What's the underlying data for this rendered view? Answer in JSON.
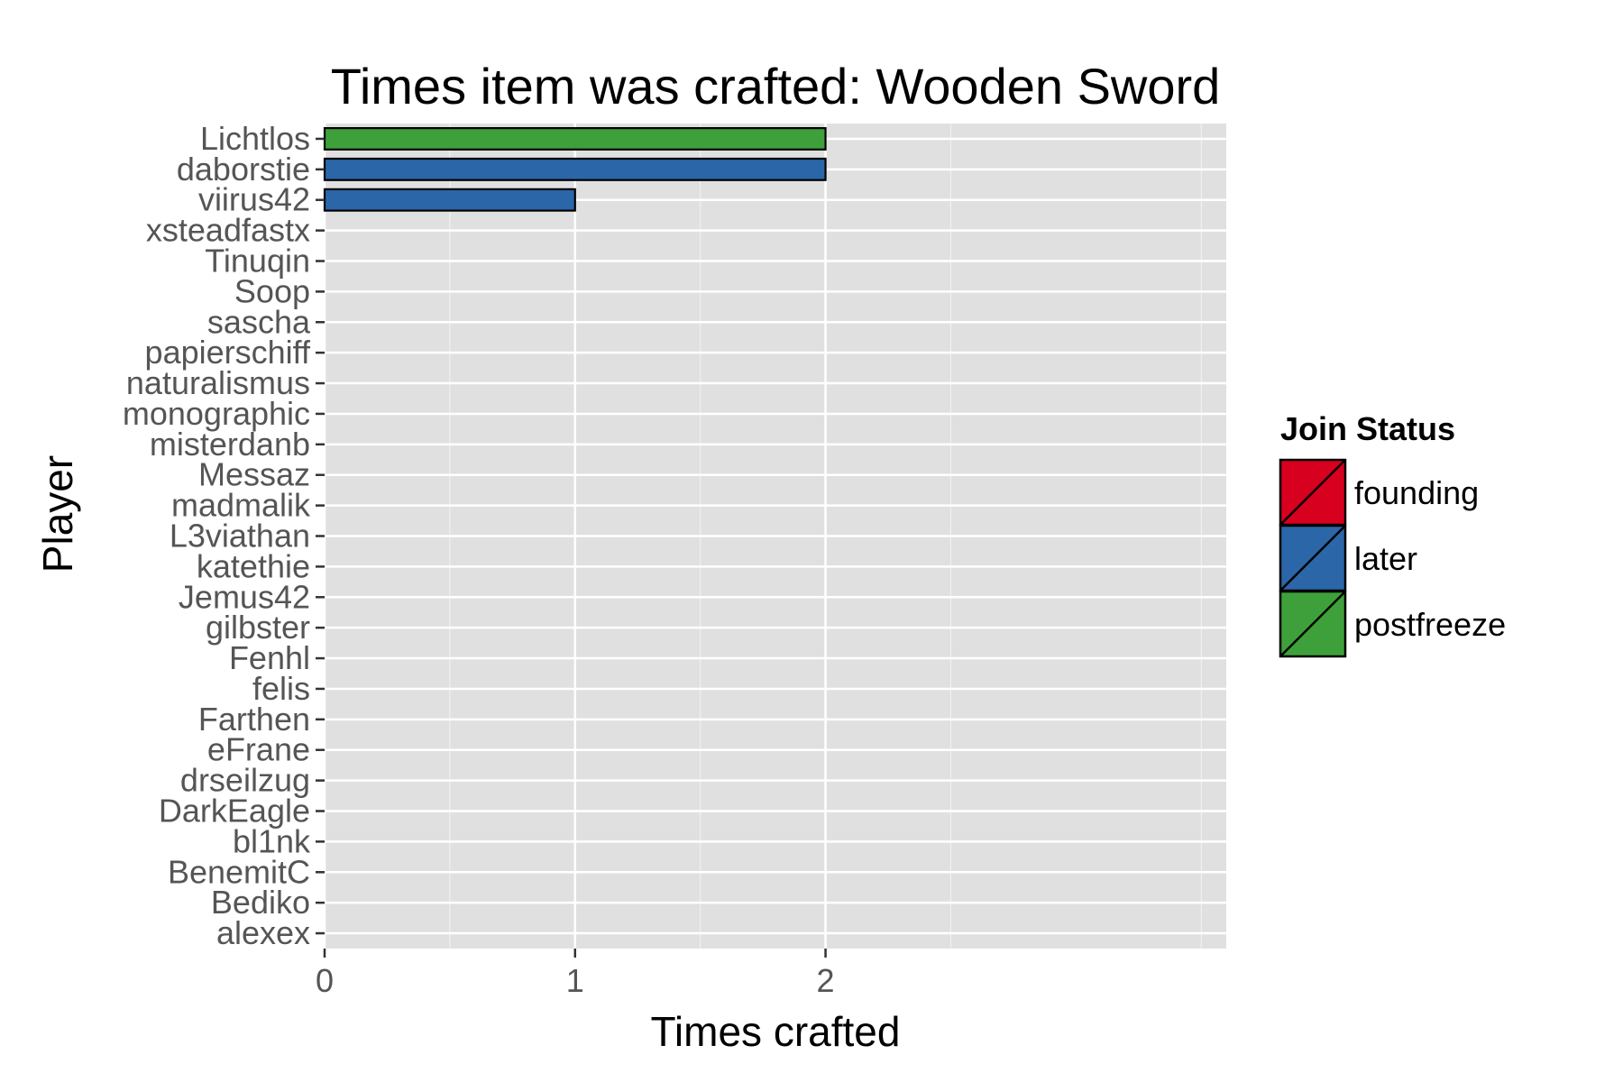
{
  "chart_data": {
    "type": "bar",
    "orientation": "horizontal",
    "title": "Times item was crafted: Wooden Sword",
    "xlabel": "Times crafted",
    "ylabel": "Player",
    "xlim": [
      0,
      3.6
    ],
    "x_ticks": [
      0,
      1,
      2
    ],
    "grid": true,
    "legend": {
      "title": "Join Status",
      "position": "right",
      "entries": [
        {
          "label": "founding",
          "color": "#d7001e"
        },
        {
          "label": "later",
          "color": "#2b66a8"
        },
        {
          "label": "postfreeze",
          "color": "#3ea03a"
        }
      ]
    },
    "categories": [
      "Lichtlos",
      "daborstie",
      "viirus42",
      "xsteadfastx",
      "Tinuqin",
      "Soop",
      "sascha",
      "papierschiff",
      "naturalismus",
      "monographic",
      "misterdanb",
      "Messaz",
      "madmalik",
      "L3viathan",
      "katethie",
      "Jemus42",
      "gilbster",
      "Fenhl",
      "felis",
      "Farthen",
      "eFrane",
      "drseilzug",
      "DarkEagle",
      "bl1nk",
      "BenemitC",
      "Bediko",
      "alexex"
    ],
    "values": [
      2,
      2,
      1,
      0,
      0,
      0,
      0,
      0,
      0,
      0,
      0,
      0,
      0,
      0,
      0,
      0,
      0,
      0,
      0,
      0,
      0,
      0,
      0,
      0,
      0,
      0,
      0
    ],
    "status": [
      "postfreeze",
      "later",
      "later",
      "later",
      "later",
      "later",
      "later",
      "later",
      "later",
      "later",
      "later",
      "later",
      "later",
      "later",
      "later",
      "later",
      "later",
      "later",
      "later",
      "later",
      "later",
      "later",
      "later",
      "later",
      "later",
      "later",
      "later"
    ]
  },
  "colors": {
    "panel_background": "#e0e0e0",
    "grid": "#ffffff",
    "bar_outline": "#000000",
    "tick_text": "#555555"
  }
}
